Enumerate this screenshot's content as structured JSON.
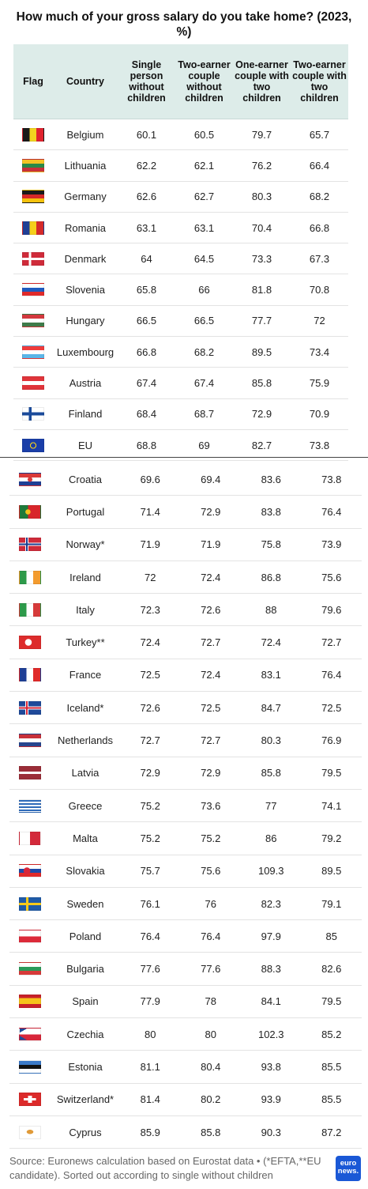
{
  "title": "How much of your gross salary do you take home? (2023, %)",
  "headers": {
    "flag": "Flag",
    "country": "Country",
    "col1": "Single person without children",
    "col2": "Two-earner couple without children",
    "col3": "One-earner couple with two children",
    "col4": "Two-earner couple with two children"
  },
  "rows_top": [
    {
      "country": "Belgium",
      "v": [
        "60.1",
        "60.5",
        "79.7",
        "65.7"
      ],
      "flag_bg": "linear-gradient(to right,#1a1a1a 0 33%,#f2d51f 33% 66%,#e0232f 66%)"
    },
    {
      "country": "Lithuania",
      "v": [
        "62.2",
        "62.1",
        "76.2",
        "66.4"
      ],
      "flag_bg": "linear-gradient(#f5c324 0 33%,#2a8a47 33% 66%,#c8313a 66%)"
    },
    {
      "country": "Germany",
      "v": [
        "62.6",
        "62.7",
        "80.3",
        "68.2"
      ],
      "flag_bg": "linear-gradient(#1a1a1a 0 33%,#d62828 33% 66%,#f4c20d 66%)"
    },
    {
      "country": "Romania",
      "v": [
        "63.1",
        "63.1",
        "70.4",
        "66.8"
      ],
      "flag_bg": "linear-gradient(to right,#1f3f95 0 33%,#f5cf1b 33% 66%,#d52a2a 66%)"
    },
    {
      "country": "Denmark",
      "v": [
        "64",
        "64.5",
        "73.3",
        "67.3"
      ],
      "flag_bg": "linear-gradient(to right,transparent 0 28%,#fff 28% 40%,transparent 40%),linear-gradient(transparent 0 40%,#fff 40% 60%,transparent 60%),#cf2b3a"
    },
    {
      "country": "Slovenia",
      "v": [
        "65.8",
        "66",
        "81.8",
        "70.8"
      ],
      "flag_bg": "linear-gradient(#fff 0 33%,#1f5bbf 33% 66%,#e02a2a 66%)"
    },
    {
      "country": "Hungary",
      "v": [
        "66.5",
        "66.5",
        "77.7",
        "72"
      ],
      "flag_bg": "linear-gradient(#d3393e 0 33%,#fff 33% 66%,#3f7b4a 66%)"
    },
    {
      "country": "Luxembourg",
      "v": [
        "66.8",
        "68.2",
        "89.5",
        "73.4"
      ],
      "flag_bg": "linear-gradient(#ef3b3b 0 33%,#fff 33% 66%,#5bb6e8 66%)"
    },
    {
      "country": "Austria",
      "v": [
        "67.4",
        "67.4",
        "85.8",
        "75.9"
      ],
      "flag_bg": "linear-gradient(#e0343a 0 33%,#fff 33% 66%,#e0343a 66%)"
    },
    {
      "country": "Finland",
      "v": [
        "68.4",
        "68.7",
        "72.9",
        "70.9"
      ],
      "flag_bg": "linear-gradient(to right,transparent 0 28%,#1b4b9b 28% 42%,transparent 42%),linear-gradient(transparent 0 38%,#1b4b9b 38% 62%,transparent 62%),#fff"
    },
    {
      "country": "EU",
      "v": [
        "68.8",
        "69",
        "82.7",
        "73.8"
      ],
      "flag_bg": "radial-gradient(circle,transparent 0 3px,#f5d21a 3px 4px,transparent 4px),#1a3ea8"
    }
  ],
  "rows_bottom": [
    {
      "country": "Croatia",
      "v": [
        "69.6",
        "69.4",
        "83.6",
        "73.8"
      ],
      "flag_bg": "radial-gradient(circle at 50% 50%,#d93a3a 0 3px,transparent 3px),linear-gradient(#d93a3a 0 33%,#fff 33% 66%,#1f3f95 66%)"
    },
    {
      "country": "Portugal",
      "v": [
        "71.4",
        "72.9",
        "83.8",
        "76.4"
      ],
      "flag_bg": "radial-gradient(circle at 40% 50%,#f2c21b 0 3px,transparent 3.5px),linear-gradient(to right,#1f7a3a 0 40%,#d8262b 40%)"
    },
    {
      "country": "Norway*",
      "v": [
        "71.9",
        "71.9",
        "75.8",
        "73.9"
      ],
      "flag_bg": "linear-gradient(to right,transparent 0 30%,#1b3d8f 30% 38%,transparent 38%),linear-gradient(transparent 0 44%,#1b3d8f 44% 56%,transparent 56%),linear-gradient(to right,transparent 0 26%,#fff 26% 42%,transparent 42%),linear-gradient(transparent 0 36%,#fff 36% 64%,transparent 64%),#cf2b3a"
    },
    {
      "country": "Ireland",
      "v": [
        "72",
        "72.4",
        "86.8",
        "75.6"
      ],
      "flag_bg": "linear-gradient(to right,#2d9a4a 0 33%,#fff 33% 66%,#f39b2e 66%)"
    },
    {
      "country": "Italy",
      "v": [
        "72.3",
        "72.6",
        "88",
        "79.6"
      ],
      "flag_bg": "linear-gradient(to right,#2d9a4a 0 33%,#fff 33% 66%,#d63a3a 66%)"
    },
    {
      "country": "Turkey**",
      "v": [
        "72.4",
        "72.7",
        "72.4",
        "72.7"
      ],
      "flag_bg": "radial-gradient(circle at 42% 50%,#fff 0 4px,transparent 4.5px),#dd2c2c"
    },
    {
      "country": "France",
      "v": [
        "72.5",
        "72.4",
        "83.1",
        "76.4"
      ],
      "flag_bg": "linear-gradient(to right,#1f3f95 0 33%,#fff 33% 66%,#e02a2a 66%)"
    },
    {
      "country": "Iceland*",
      "v": [
        "72.6",
        "72.5",
        "84.7",
        "72.5"
      ],
      "flag_bg": "linear-gradient(to right,transparent 0 30%,#d9283a 30% 38%,transparent 38%),linear-gradient(transparent 0 44%,#d9283a 44% 56%,transparent 56%),linear-gradient(to right,transparent 0 26%,#fff 26% 42%,transparent 42%),linear-gradient(transparent 0 36%,#fff 36% 64%,transparent 64%),#1f4a9a"
    },
    {
      "country": "Netherlands",
      "v": [
        "72.7",
        "72.7",
        "80.3",
        "76.9"
      ],
      "flag_bg": "linear-gradient(#c8313a 0 33%,#fff 33% 66%,#26468f 66%)"
    },
    {
      "country": "Latvia",
      "v": [
        "72.9",
        "72.9",
        "85.8",
        "79.5"
      ],
      "flag_bg": "linear-gradient(#9b2d38 0 40%,#fff 40% 60%,#9b2d38 60%)"
    },
    {
      "country": "Greece",
      "v": [
        "75.2",
        "73.6",
        "77",
        "74.1"
      ],
      "flag_bg": "repeating-linear-gradient(#2e6ab9 0 2px,#fff 2px 4px)"
    },
    {
      "country": "Malta",
      "v": [
        "75.2",
        "75.2",
        "86",
        "79.2"
      ],
      "flag_bg": "linear-gradient(to right,#fff 0 50%,#d3293a 50%)"
    },
    {
      "country": "Slovakia",
      "v": [
        "75.7",
        "75.6",
        "109.3",
        "89.5"
      ],
      "flag_bg": "radial-gradient(circle at 35% 50%,#d8263a 0 4px,transparent 4.5px),linear-gradient(#fff 0 33%,#1f4aa8 33% 66%,#e02a2a 66%)"
    },
    {
      "country": "Sweden",
      "v": [
        "76.1",
        "76",
        "82.3",
        "79.1"
      ],
      "flag_bg": "linear-gradient(to right,transparent 0 30%,#f5c91a 30% 42%,transparent 42%),linear-gradient(transparent 0 40%,#f5c91a 40% 60%,transparent 60%),#1f5ba8"
    },
    {
      "country": "Poland",
      "v": [
        "76.4",
        "76.4",
        "97.9",
        "85"
      ],
      "flag_bg": "linear-gradient(#fff 0 50%,#dc2a3a 50%)"
    },
    {
      "country": "Bulgaria",
      "v": [
        "77.6",
        "77.6",
        "88.3",
        "82.6"
      ],
      "flag_bg": "linear-gradient(#fff 0 33%,#2c9a5a 33% 66%,#d63a3a 66%)"
    },
    {
      "country": "Spain",
      "v": [
        "77.9",
        "78",
        "84.1",
        "79.5"
      ],
      "flag_bg": "linear-gradient(#c8212a 0 25%,#f6c31b 25% 75%,#c8212a 75%)"
    },
    {
      "country": "Czechia",
      "v": [
        "80",
        "80",
        "102.3",
        "85.2"
      ],
      "flag_bg": "linear-gradient(to bottom right,#1f4a9a 0 35%,transparent 35%) top left/50% 50% no-repeat,linear-gradient(to top right,#1f4a9a 0 35%,transparent 35%) bottom left/50% 50% no-repeat,linear-gradient(#fff 0 50%,#d8263a 50%)"
    },
    {
      "country": "Estonia",
      "v": [
        "81.1",
        "80.4",
        "93.8",
        "85.5"
      ],
      "flag_bg": "linear-gradient(#3b7ac8 0 33%,#111 33% 66%,#fff 66%)"
    },
    {
      "country": "Switzerland*",
      "v": [
        "81.4",
        "80.2",
        "93.9",
        "85.5"
      ],
      "flag_bg": "linear-gradient(transparent 0 40%,#fff 40% 60%,transparent 60%) center/60% 100% no-repeat,linear-gradient(to right,transparent 0 40%,#fff 40% 60%,transparent 60%) center/100% 60% no-repeat,#dc2a2a"
    },
    {
      "country": "Cyprus",
      "v": [
        "85.9",
        "85.8",
        "90.3",
        "87.2"
      ],
      "flag_bg": "radial-gradient(ellipse at 50% 45%,#e09a38 0 4px,transparent 4.5px),#fff"
    }
  ],
  "footer": "Source: Euronews calculation based on Eurostat data • (*EFTA,**EU candidate). Sorted out according to single without children",
  "logo": "euro news."
}
